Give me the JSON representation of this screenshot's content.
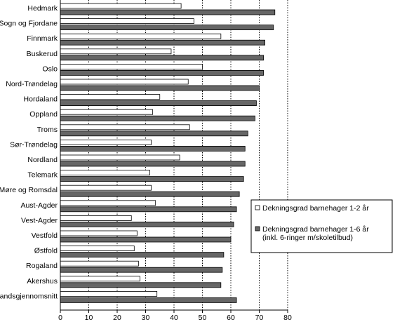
{
  "chart_data": {
    "type": "bar",
    "orientation": "horizontal",
    "categories": [
      "Hedmark",
      "Sogn og Fjordane",
      "Finnmark",
      "Buskerud",
      "Oslo",
      "Nord-Trøndelag",
      "Hordaland",
      "Oppland",
      "Troms",
      "Sør-Trøndelag",
      "Nordland",
      "Telemark",
      "Møre og Romsdal",
      "Aust-Agder",
      "Vest-Agder",
      "Vestfold",
      "Østfold",
      "Rogaland",
      "Akershus",
      "Landsgjennomsnitt"
    ],
    "series": [
      {
        "name": "Dekningsgrad barnehager 1-2 år",
        "color": "#ffffff",
        "values": [
          42.5,
          47,
          56.5,
          39,
          50,
          45,
          35,
          32.5,
          45.5,
          32,
          42,
          31.5,
          32,
          33.5,
          25,
          27,
          26,
          27.5,
          28,
          34
        ]
      },
      {
        "name": "Dekningsgrad barnehager 1-6 år (inkl. 6-ringer m/skoletilbud)",
        "color": "#666666",
        "legend_lines": [
          "Dekningsgrad barnehager 1-6 år",
          "(inkl. 6-ringer m/skoletilbud)"
        ],
        "values": [
          75.5,
          75,
          72,
          71.5,
          71.5,
          70,
          69,
          68.5,
          66,
          65,
          65,
          64.5,
          63,
          62,
          61,
          60,
          57.5,
          57,
          56.5,
          62
        ]
      }
    ],
    "xlim": [
      0,
      80
    ],
    "xticks": [
      0,
      10,
      20,
      30,
      40,
      50,
      60,
      70,
      80
    ],
    "grid": "vertical dotted",
    "legend_position": "right",
    "title": "",
    "xlabel": "",
    "ylabel": ""
  }
}
